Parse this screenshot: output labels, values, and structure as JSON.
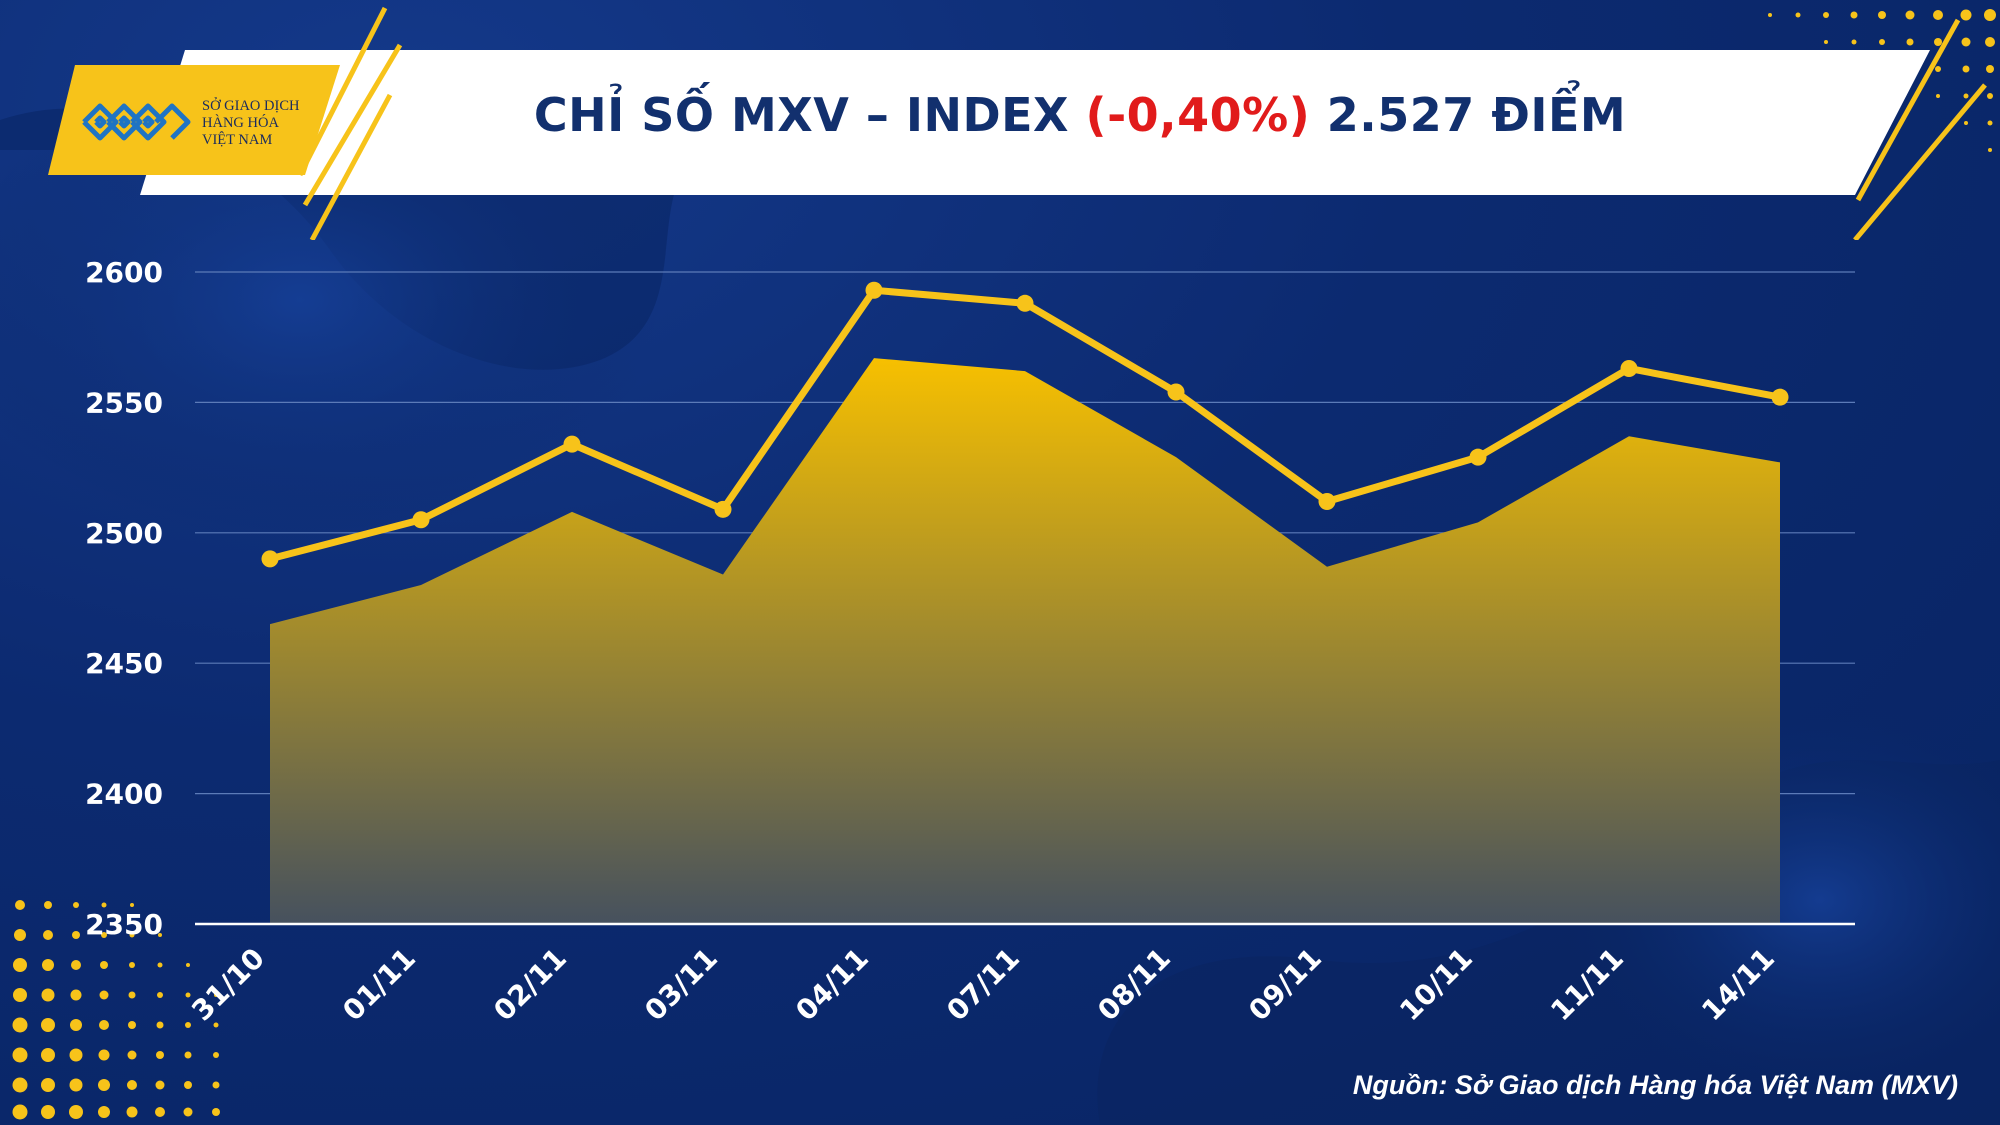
{
  "header": {
    "title_prefix": "CHỈ SỐ MXV – INDEX",
    "title_change": "(-0,40%)",
    "title_suffix": "2.527 ĐIỂM"
  },
  "logo": {
    "line1": "SỞ GIAO DỊCH",
    "line2": "HÀNG HÓA",
    "line3": "VIỆT NAM"
  },
  "source": "Nguồn: Sở Giao dịch Hàng hóa Việt Nam (MXV)",
  "colors": {
    "background": "#0c2a70",
    "accent_yellow": "#f7c31a",
    "negative_change": "#e11b1b",
    "title_text": "#12306e"
  },
  "chart_data": {
    "type": "area",
    "categories": [
      "31/10",
      "01/11",
      "02/11",
      "03/11",
      "04/11",
      "07/11",
      "08/11",
      "09/11",
      "10/11",
      "11/11",
      "14/11"
    ],
    "series": [
      {
        "type": "line",
        "values": [
          2490,
          2505,
          2534,
          2509,
          2593,
          2588,
          2554,
          2512,
          2529,
          2563,
          2552
        ]
      },
      {
        "type": "area",
        "values": [
          2465,
          2480,
          2508,
          2484,
          2567,
          2562,
          2529,
          2487,
          2504,
          2537,
          2527
        ]
      }
    ],
    "y_ticks": [
      2350,
      2400,
      2450,
      2500,
      2550,
      2600
    ],
    "ylim": [
      2350,
      2600
    ],
    "grid": true,
    "legend": "none"
  }
}
